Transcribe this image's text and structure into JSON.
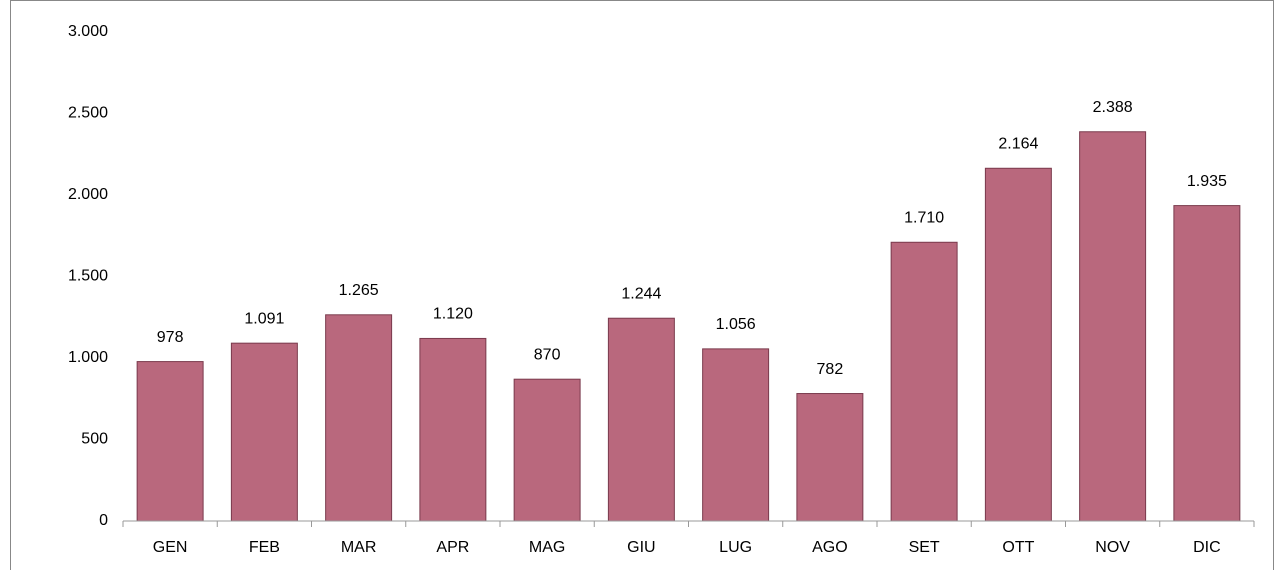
{
  "chart_data": {
    "type": "bar",
    "categories": [
      "GEN",
      "FEB",
      "MAR",
      "APR",
      "MAG",
      "GIU",
      "LUG",
      "AGO",
      "SET",
      "OTT",
      "NOV",
      "DIC"
    ],
    "values": [
      978,
      1091,
      1265,
      1120,
      870,
      1244,
      1056,
      782,
      1710,
      2164,
      2388,
      1935
    ],
    "value_labels": [
      "978",
      "1.091",
      "1.265",
      "1.120",
      "870",
      "1.244",
      "1.056",
      "782",
      "1.710",
      "2.164",
      "2.388",
      "1.935"
    ],
    "color": "#b9687d",
    "ylim": [
      0,
      3000
    ],
    "yticks": [
      0,
      500,
      {
        "value": 1000,
        "label": "1.000"
      },
      {
        "value": 1500,
        "label": "1.500"
      },
      {
        "value": 2000,
        "label": "2.000"
      },
      {
        "value": 2500,
        "label": "2.500"
      },
      {
        "value": 3000,
        "label": "3.000"
      }
    ],
    "grid": false
  }
}
